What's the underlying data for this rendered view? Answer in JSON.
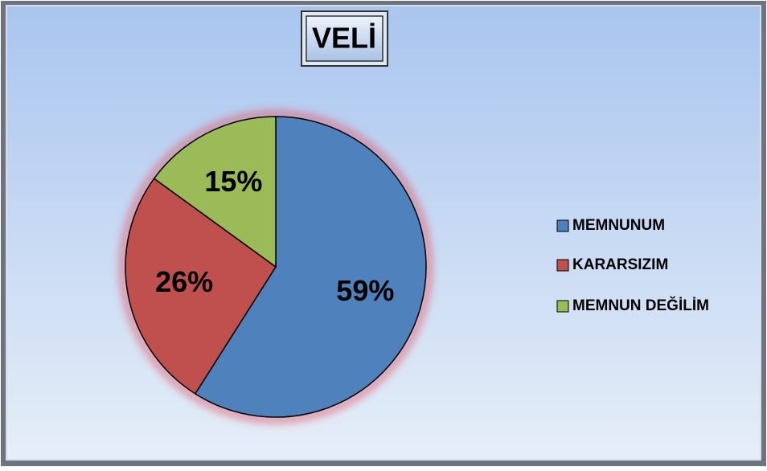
{
  "chart_data": {
    "type": "pie",
    "title": "VELİ",
    "categories": [
      "MEMNUNUM",
      "KARARSIZIM",
      "MEMNUN DEĞİLİM"
    ],
    "values": [
      59,
      26,
      15
    ],
    "value_labels": [
      "59%",
      "26%",
      "15%"
    ],
    "colors": [
      "#4f81bd",
      "#c0504d",
      "#9bbb59"
    ],
    "legend": "right"
  }
}
